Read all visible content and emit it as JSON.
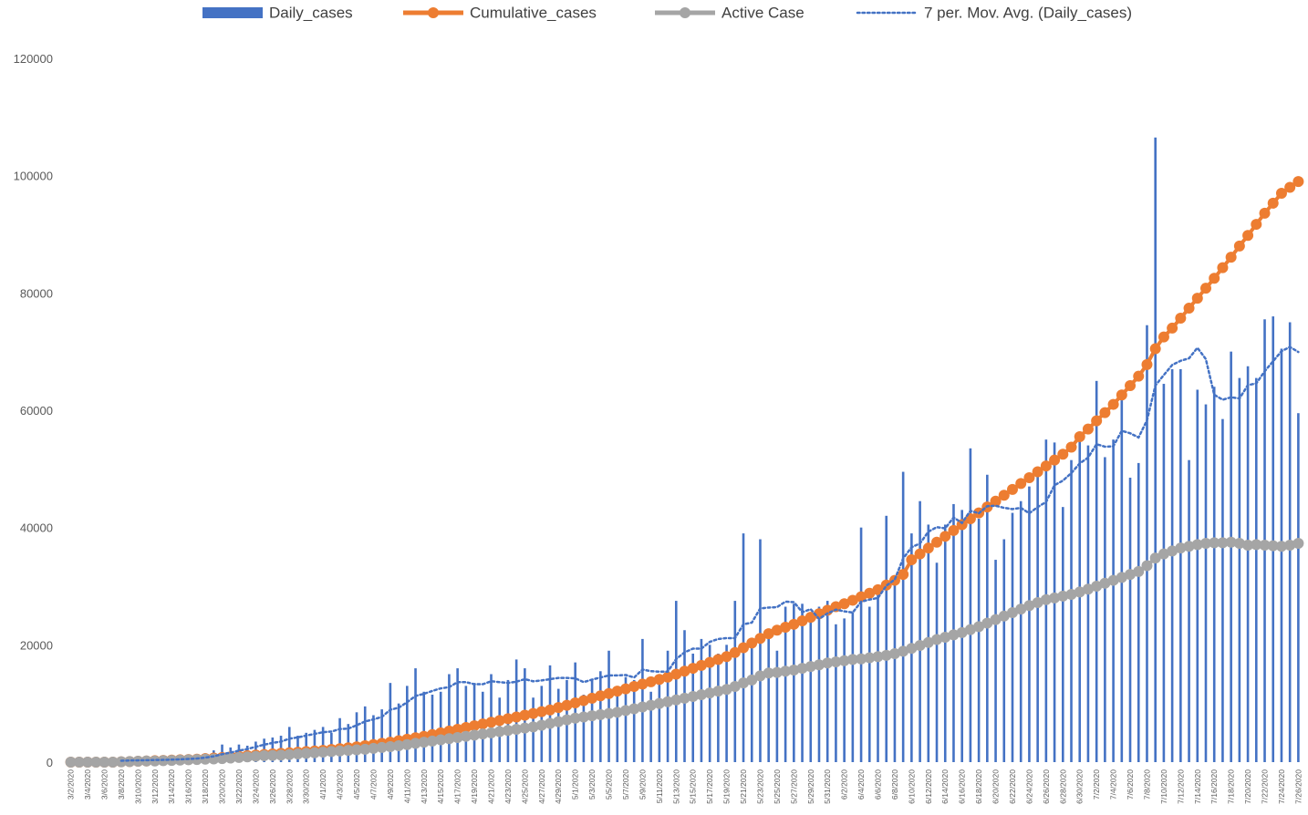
{
  "chart_data": {
    "type": "bar",
    "categories": [
      "3/2/2020",
      null,
      "3/4/2020",
      null,
      "3/6/2020",
      null,
      "3/8/2020",
      null,
      "3/10/2020",
      null,
      "3/12/2020",
      null,
      "3/14/2020",
      null,
      "3/16/2020",
      null,
      "3/18/2020",
      null,
      "3/20/2020",
      null,
      "3/22/2020",
      null,
      "3/24/2020",
      null,
      "3/26/2020",
      null,
      "3/28/2020",
      null,
      "3/30/2020",
      null,
      "4/1/2020",
      null,
      "4/3/2020",
      null,
      "4/5/2020",
      null,
      "4/7/2020",
      null,
      "4/9/2020",
      null,
      "4/11/2020",
      null,
      "4/13/2020",
      null,
      "4/15/2020",
      null,
      "4/17/2020",
      null,
      "4/19/2020",
      null,
      "4/21/2020",
      null,
      "4/23/2020",
      null,
      "4/25/2020",
      null,
      "4/27/2020",
      null,
      "4/29/2020",
      null,
      "5/1/2020",
      null,
      "5/3/2020",
      null,
      "5/5/2020",
      null,
      "5/7/2020",
      null,
      "5/9/2020",
      null,
      "5/11/2020",
      null,
      "5/13/2020",
      null,
      "5/15/2020",
      null,
      "5/17/2020",
      null,
      "5/19/2020",
      null,
      "5/21/2020",
      null,
      "5/23/2020",
      null,
      "5/25/2020",
      null,
      "5/27/2020",
      null,
      "5/29/2020",
      null,
      "5/31/2020",
      null,
      "6/2/2020",
      null,
      "6/4/2020",
      null,
      "6/6/2020",
      null,
      "6/8/2020",
      null,
      "6/10/2020",
      null,
      "6/12/2020",
      null,
      "6/14/2020",
      null,
      "6/16/2020",
      null,
      "6/18/2020",
      null,
      "6/20/2020",
      null,
      "6/22/2020",
      null,
      "6/24/2020",
      null,
      "6/26/2020",
      null,
      "6/28/2020",
      null,
      "6/30/2020",
      null,
      "7/2/2020",
      null,
      "7/4/2020",
      null,
      "7/6/2020",
      null,
      "7/8/2020",
      null,
      "7/10/2020",
      null,
      "7/12/2020",
      null,
      "7/14/2020",
      null,
      "7/16/2020",
      null,
      "7/18/2020",
      null,
      "7/20/2020",
      null,
      "7/22/2020",
      null,
      "7/24/2020",
      null,
      "7/26/2020"
    ],
    "series": [
      {
        "name": "Daily_cases",
        "type": "bar",
        "color": "#4472c4",
        "values": [
          100,
          150,
          200,
          250,
          300,
          300,
          350,
          400,
          300,
          400,
          500,
          400,
          600,
          700,
          900,
          800,
          1500,
          2000,
          3000,
          2500,
          3000,
          2800,
          3500,
          4000,
          4200,
          4500,
          6000,
          4500,
          5000,
          5500,
          6000,
          5000,
          7500,
          6500,
          8500,
          9500,
          8000,
          9000,
          13500,
          10000,
          13000,
          16000,
          12000,
          11500,
          12000,
          15000,
          16000,
          13000,
          13500,
          12000,
          15000,
          11000,
          14000,
          17500,
          16000,
          11000,
          13000,
          16500,
          12500,
          14000,
          17000,
          11500,
          14000,
          15500,
          19000,
          12500,
          14500,
          14000,
          21000,
          12000,
          15000,
          19000,
          27500,
          22500,
          18500,
          21000,
          20000,
          18500,
          20000,
          27500,
          39000,
          20500,
          38000,
          21000,
          19000,
          26500,
          27000,
          27000,
          24000,
          26500,
          27500,
          23500,
          24500,
          25500,
          40000,
          26500,
          28500,
          42000,
          31000,
          49500,
          39000,
          44500,
          40500,
          34000,
          40500,
          44000,
          43000,
          53500,
          41500,
          49000,
          34500,
          38000,
          42500,
          44500,
          47000,
          49000,
          55000,
          54500,
          43500,
          51500,
          56000,
          54000,
          65000,
          52000,
          55000,
          62000,
          48500,
          51000,
          74500,
          106500,
          64500,
          67000,
          67000,
          51500,
          63500,
          61000,
          64000,
          58500,
          70000,
          65500,
          67500,
          65500,
          75500,
          76000,
          70500,
          75000,
          59500
        ]
      },
      {
        "name": "Cumulative_cases",
        "type": "line",
        "markers": true,
        "color": "#ed7d31",
        "values": [
          0,
          0,
          0,
          0,
          0,
          0,
          50,
          100,
          150,
          200,
          250,
          300,
          350,
          400,
          450,
          500,
          600,
          700,
          800,
          900,
          1000,
          1100,
          1200,
          1300,
          1400,
          1500,
          1600,
          1700,
          1800,
          1900,
          2000,
          2150,
          2300,
          2450,
          2600,
          2800,
          3000,
          3200,
          3400,
          3650,
          3900,
          4150,
          4400,
          4700,
          5000,
          5300,
          5600,
          5900,
          6200,
          6500,
          6800,
          7100,
          7400,
          7700,
          8000,
          8300,
          8600,
          8900,
          9300,
          9700,
          10100,
          10500,
          10900,
          11300,
          11700,
          12100,
          12500,
          12900,
          13300,
          13700,
          14100,
          14500,
          15000,
          15500,
          16000,
          16500,
          17000,
          17500,
          18000,
          18700,
          19500,
          20300,
          21100,
          21900,
          22500,
          23000,
          23500,
          24100,
          24700,
          25300,
          25900,
          26500,
          27000,
          27600,
          28200,
          28800,
          29400,
          30200,
          31000,
          32000,
          34500,
          35500,
          36500,
          37500,
          38500,
          39500,
          40500,
          41500,
          42500,
          43500,
          44500,
          45500,
          46500,
          47500,
          48500,
          49500,
          50500,
          51500,
          52500,
          53700,
          55500,
          56800,
          58200,
          59600,
          61000,
          62600,
          64200,
          65800,
          67800,
          70500,
          72500,
          74000,
          75700,
          77400,
          79100,
          80800,
          82500,
          84300,
          86100,
          88000,
          89800,
          91700,
          93600,
          95300,
          97000,
          98000,
          99000
        ]
      },
      {
        "name": "Active Case",
        "type": "line",
        "markers": true,
        "color": "#a5a5a5",
        "values": [
          0,
          0,
          0,
          0,
          0,
          0,
          50,
          100,
          150,
          200,
          200,
          250,
          300,
          350,
          400,
          450,
          500,
          550,
          600,
          700,
          800,
          900,
          1000,
          1100,
          1150,
          1200,
          1300,
          1400,
          1500,
          1600,
          1700,
          1800,
          1900,
          2000,
          2100,
          2200,
          2350,
          2500,
          2650,
          2800,
          3000,
          3200,
          3400,
          3600,
          3800,
          4000,
          4200,
          4400,
          4600,
          4800,
          5000,
          5200,
          5400,
          5600,
          5800,
          6000,
          6300,
          6600,
          6900,
          7200,
          7500,
          7700,
          7900,
          8100,
          8300,
          8500,
          8800,
          9100,
          9400,
          9700,
          10000,
          10300,
          10600,
          10900,
          11200,
          11500,
          11800,
          12100,
          12400,
          12900,
          13500,
          14000,
          14700,
          15200,
          15300,
          15500,
          15700,
          16000,
          16300,
          16600,
          16900,
          17100,
          17300,
          17500,
          17600,
          17800,
          18000,
          18200,
          18500,
          18900,
          19400,
          19900,
          20400,
          20900,
          21300,
          21700,
          22100,
          22600,
          23100,
          23700,
          24300,
          24900,
          25500,
          26100,
          26700,
          27200,
          27700,
          28000,
          28300,
          28600,
          29000,
          29500,
          30000,
          30500,
          31000,
          31500,
          32000,
          32500,
          33500,
          34800,
          35500,
          36000,
          36500,
          36800,
          37100,
          37300,
          37400,
          37400,
          37500,
          37300,
          37000,
          37100,
          37000,
          36900,
          36800,
          37000,
          37300
        ]
      },
      {
        "name": "7 per. Mov. Avg. (Daily_cases)",
        "type": "line",
        "dash": "dotted",
        "color": "#4472c4",
        "values": [
          null,
          null,
          null,
          null,
          null,
          null,
          236,
          279,
          300,
          329,
          364,
          379,
          421,
          471,
          543,
          614,
          771,
          986,
          1357,
          1629,
          1957,
          2229,
          2614,
          2971,
          3286,
          3500,
          4000,
          4214,
          4529,
          4814,
          5100,
          5214,
          5643,
          5714,
          6286,
          6929,
          7286,
          7714,
          8929,
          9286,
          10214,
          11286,
          11643,
          12143,
          12571,
          12786,
          13643,
          13643,
          13286,
          13286,
          13786,
          13643,
          13500,
          13714,
          14143,
          13786,
          13929,
          14143,
          14357,
          14357,
          14286,
          13643,
          14071,
          14429,
          14786,
          14786,
          14857,
          14429,
          15786,
          15500,
          15429,
          15429,
          17571,
          18714,
          19357,
          19357,
          20500,
          21000,
          21143,
          21143,
          23500,
          23786,
          26214,
          26357,
          26429,
          27357,
          27286,
          25571,
          26071,
          24429,
          25357,
          26000,
          25714,
          25500,
          27357,
          27714,
          28000,
          30071,
          31143,
          34714,
          36643,
          37286,
          39286,
          40071,
          39857,
          41714,
          40786,
          42857,
          42429,
          43643,
          43714,
          43357,
          43143,
          43357,
          42429,
          43500,
          44357,
          47214,
          48000,
          49286,
          50929,
          51929,
          54214,
          53786,
          53857,
          56500,
          56071,
          55357,
          58286,
          64214,
          66000,
          67714,
          68429,
          68857,
          70643,
          68714,
          62643,
          61786,
          62214,
          62000,
          64286,
          64571,
          66643,
          68357,
          70071,
          70786,
          69929
        ]
      }
    ],
    "ylim": [
      0,
      120000
    ],
    "yticks": [
      0,
      20000,
      40000,
      60000,
      80000,
      100000,
      120000
    ],
    "grid": false,
    "legend": "top"
  }
}
